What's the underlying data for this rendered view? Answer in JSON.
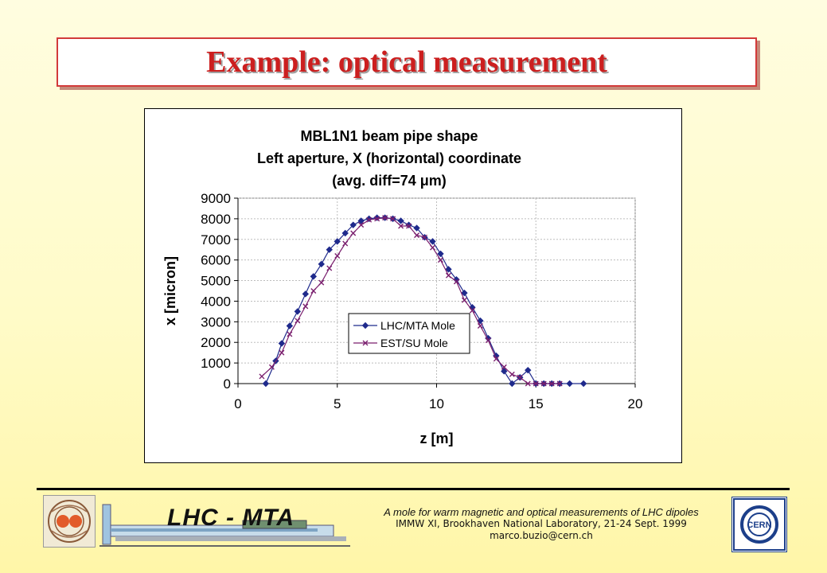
{
  "slide": {
    "title": "Example: optical measurement"
  },
  "chart_data": {
    "type": "line",
    "title_lines": [
      "MBL1N1 beam pipe shape",
      "Left aperture, X (horizontal) coordinate",
      "(avg. diff=74 μm)"
    ],
    "xlabel": "z [m]",
    "ylabel": "x [micron]",
    "xlim": [
      0,
      20
    ],
    "ylim": [
      0,
      9000
    ],
    "x_ticks": [
      0,
      5,
      10,
      15,
      20
    ],
    "y_ticks": [
      0,
      1000,
      2000,
      3000,
      4000,
      5000,
      6000,
      7000,
      8000,
      9000
    ],
    "grid": true,
    "legend_position": "lower-center inside plot",
    "series": [
      {
        "name": "LHC/MTA Mole",
        "color": "#1f2a8c",
        "marker": "diamond",
        "x": [
          1.4,
          1.9,
          2.2,
          2.6,
          3.0,
          3.4,
          3.8,
          4.2,
          4.6,
          5.0,
          5.4,
          5.8,
          6.2,
          6.6,
          7.0,
          7.4,
          7.8,
          8.2,
          8.6,
          9.0,
          9.4,
          9.8,
          10.2,
          10.6,
          11.0,
          11.4,
          11.8,
          12.2,
          12.6,
          13.0,
          13.4,
          13.8,
          14.2,
          14.6,
          15.0,
          15.4,
          15.8,
          16.2,
          16.7,
          17.4
        ],
        "y": [
          0,
          1100,
          1950,
          2800,
          3500,
          4350,
          5200,
          5800,
          6500,
          6900,
          7300,
          7700,
          7900,
          8000,
          8050,
          8050,
          8000,
          7900,
          7700,
          7550,
          7100,
          6900,
          6300,
          5550,
          5050,
          4400,
          3700,
          3050,
          2200,
          1350,
          600,
          0,
          300,
          650,
          0,
          0,
          0,
          0,
          0,
          0
        ]
      },
      {
        "name": "EST/SU Mole",
        "color": "#7a1f6e",
        "marker": "x",
        "x": [
          1.2,
          1.7,
          2.2,
          2.6,
          3.0,
          3.4,
          3.8,
          4.2,
          4.6,
          5.0,
          5.4,
          5.8,
          6.2,
          6.6,
          7.0,
          7.4,
          7.8,
          8.2,
          8.6,
          9.0,
          9.4,
          9.8,
          10.2,
          10.6,
          11.0,
          11.4,
          11.8,
          12.2,
          12.6,
          13.0,
          13.4,
          13.8,
          14.2,
          14.6,
          15.0,
          15.4,
          15.8,
          16.2
        ],
        "y": [
          350,
          800,
          1500,
          2400,
          3050,
          3750,
          4500,
          4900,
          5600,
          6200,
          6800,
          7300,
          7700,
          7950,
          8000,
          8050,
          8000,
          7650,
          7650,
          7200,
          7100,
          6600,
          6000,
          5250,
          4950,
          4050,
          3550,
          2800,
          2100,
          1200,
          800,
          450,
          300,
          0,
          0,
          0,
          0,
          0
        ]
      }
    ]
  },
  "footer": {
    "logo_text": "LHC - MTA",
    "line1": "A mole for warm magnetic and optical measurements  of LHC dipoles",
    "line2": "IMMW XI, Brookhaven National Laboratory, 21-24 Sept. 1999",
    "line3": "marco.buzio@cern.ch",
    "cern_label": "CERN"
  }
}
